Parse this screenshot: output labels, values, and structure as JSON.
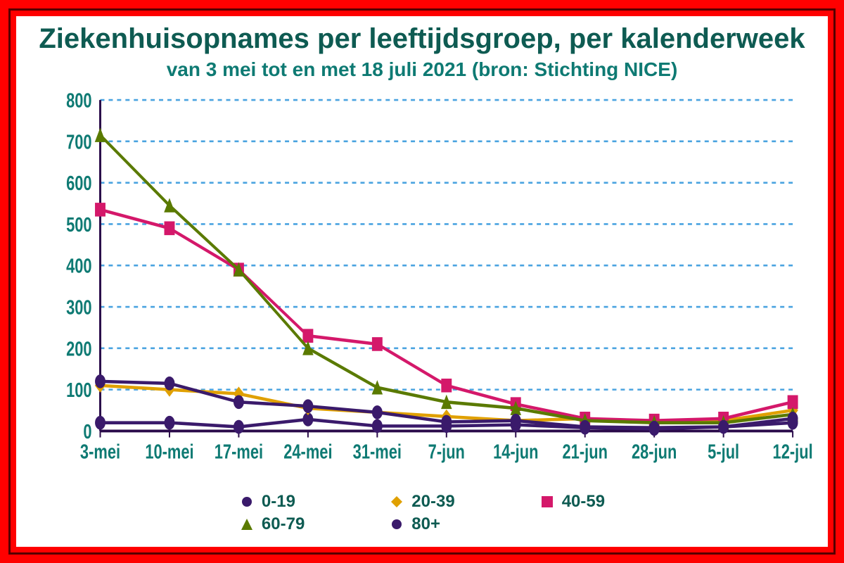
{
  "chart": {
    "type": "line",
    "title": "Ziekenhuisopnames per leeftijdsgroep, per kalenderweek",
    "subtitle": "van 3 mei tot en met 18 juli 2021 (bron: Stichting NICE)",
    "title_color": "#0e5b52",
    "subtitle_color": "#0e7a73",
    "title_fontsize": 40,
    "subtitle_fontsize": 28,
    "background_color": "#ffffff",
    "outer_border_color": "#ff0000",
    "frame_bevel_color": "#550000",
    "categories": [
      "3-mei",
      "10-mei",
      "17-mei",
      "24-mei",
      "31-mei",
      "7-jun",
      "14-jun",
      "21-jun",
      "28-jun",
      "5-jul",
      "12-jul"
    ],
    "ylim": [
      0,
      800
    ],
    "ytick_step": 100,
    "yticks": [
      0,
      100,
      200,
      300,
      400,
      500,
      600,
      700,
      800
    ],
    "grid_color": "#4aa3e0",
    "grid_dash": "6 6",
    "axis_color": "#2a0a4a",
    "axis_width": 3,
    "tick_label_color": "#0e7a73",
    "tick_fontsize": 22,
    "line_width": 3.5,
    "marker_size": 7,
    "series": [
      {
        "name": "0-19",
        "color": "#3a1a6b",
        "marker": "circle",
        "values": [
          20,
          20,
          10,
          28,
          12,
          12,
          15,
          8,
          5,
          10,
          20
        ]
      },
      {
        "name": "20-39",
        "color": "#e0a000",
        "marker": "diamond",
        "values": [
          110,
          100,
          90,
          55,
          45,
          35,
          25,
          30,
          20,
          25,
          50
        ]
      },
      {
        "name": "40-59",
        "color": "#d4186a",
        "marker": "square",
        "values": [
          535,
          490,
          390,
          230,
          210,
          110,
          65,
          30,
          25,
          30,
          70
        ]
      },
      {
        "name": "60-79",
        "color": "#5a7a00",
        "marker": "triangle",
        "values": [
          715,
          545,
          390,
          200,
          105,
          70,
          55,
          25,
          20,
          20,
          40
        ]
      },
      {
        "name": "80+",
        "color": "#3a1a6b",
        "marker": "circle",
        "values": [
          120,
          115,
          70,
          60,
          45,
          22,
          25,
          10,
          8,
          10,
          30
        ]
      }
    ],
    "legend": {
      "items": [
        "0-19",
        "20-39",
        "40-59",
        "60-79",
        "80+"
      ],
      "label_color": "#0e5b52",
      "label_fontsize": 24
    }
  }
}
